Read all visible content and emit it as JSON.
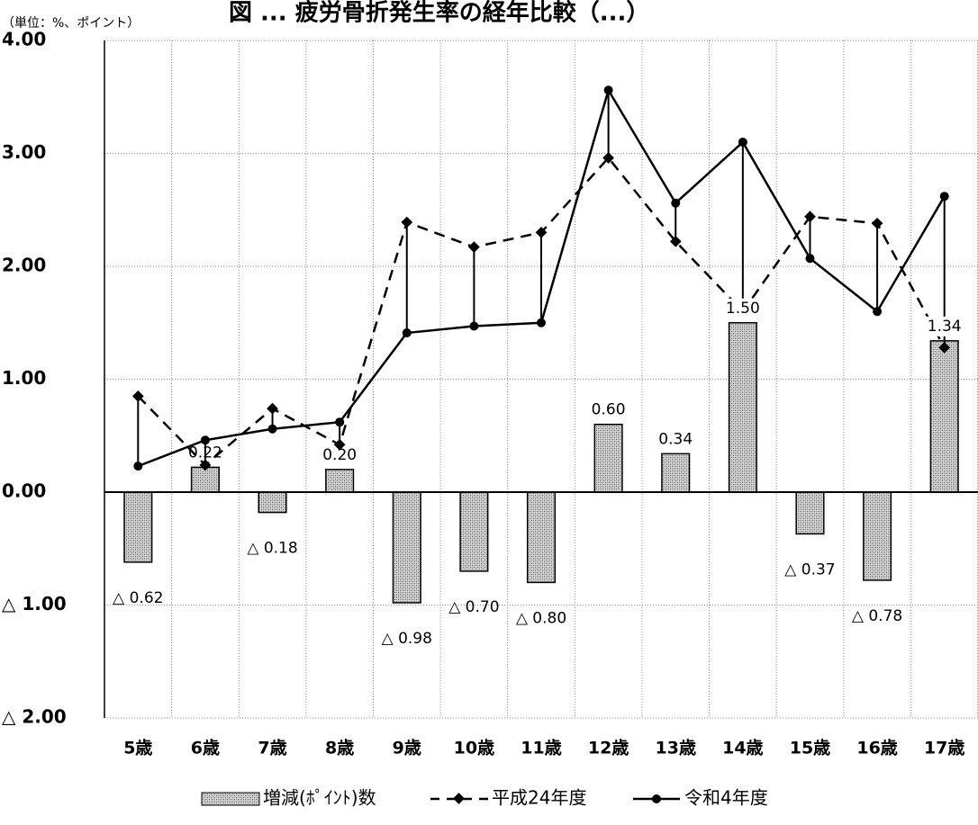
{
  "chart_data": {
    "type": "bar",
    "title": "図 ... 疲労骨折発生率の経年比較（...）",
    "unit_label": "（単位：%、ポイント）",
    "categories": [
      "5歳",
      "6歳",
      "7歳",
      "8歳",
      "9歳",
      "10歳",
      "11歳",
      "12歳",
      "13歳",
      "14歳",
      "15歳",
      "16歳",
      "17歳"
    ],
    "ylim": [
      -2,
      4
    ],
    "y_ticks": [
      {
        "value": 4,
        "label": "4.00"
      },
      {
        "value": 3,
        "label": "3.00"
      },
      {
        "value": 2,
        "label": "2.00"
      },
      {
        "value": 1,
        "label": "1.00"
      },
      {
        "value": 0,
        "label": "0.00"
      },
      {
        "value": -1,
        "label": "△ 1.00"
      },
      {
        "value": -2,
        "label": "△ 2.00"
      }
    ],
    "series": [
      {
        "name": "増減(ﾎﾟｲﾝﾄ)数",
        "kind": "bar",
        "values": [
          -0.62,
          0.22,
          -0.18,
          0.2,
          -0.98,
          -0.7,
          -0.8,
          0.6,
          0.34,
          1.5,
          -0.37,
          -0.78,
          1.34
        ],
        "labels": [
          "△ 0.62",
          "0.22",
          "△ 0.18",
          "0.20",
          "△ 0.98",
          "△ 0.70",
          "△ 0.80",
          "0.60",
          "0.34",
          "1.50",
          "△ 0.37",
          "△ 0.78",
          "1.34"
        ]
      },
      {
        "name": "平成24年度",
        "kind": "line-dashed",
        "values": [
          0.85,
          0.24,
          0.74,
          0.42,
          2.39,
          2.17,
          2.3,
          2.96,
          2.22,
          1.6,
          2.44,
          2.38,
          1.28
        ]
      },
      {
        "name": "令和4年度",
        "kind": "line-solid",
        "values": [
          0.23,
          0.46,
          0.56,
          0.62,
          1.41,
          1.47,
          1.5,
          3.56,
          2.56,
          3.1,
          2.07,
          1.6,
          2.62
        ]
      }
    ],
    "grid": true,
    "legend": "bottom"
  }
}
